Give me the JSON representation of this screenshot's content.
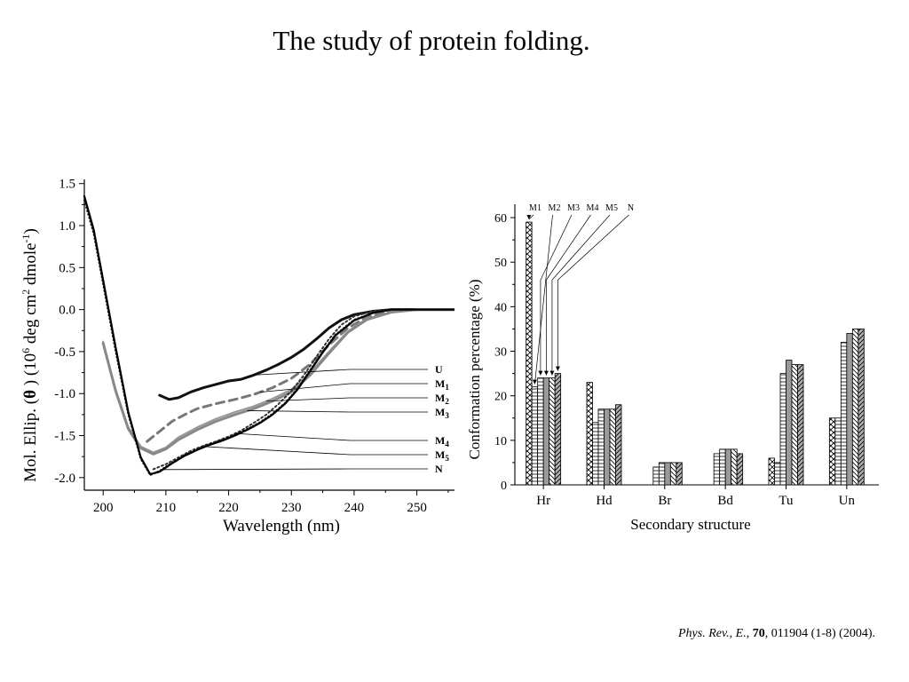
{
  "slide": {
    "title": "The study of protein folding."
  },
  "citation": {
    "journal": "Phys. Rev., E.",
    "sep1": ", ",
    "volume": "70",
    "rest": ", 011904 (1-8) (2004)."
  },
  "chart_data": [
    {
      "type": "line",
      "xlabel": "Wavelength (nm)",
      "ylabel_parts": {
        "a": "Mol. Ellip.  (",
        "theta": "θ",
        "b": " ) (10",
        "sup1": "6",
        "c": " deg cm",
        "sup2": "2",
        "d": " dmole",
        "sup3": "-1",
        "e": ")"
      },
      "xlim": [
        197,
        256
      ],
      "ylim": [
        -2.15,
        1.55
      ],
      "xticks": [
        200,
        210,
        220,
        230,
        240,
        250
      ],
      "yticks": [
        1.5,
        1.0,
        0.5,
        0.0,
        -0.5,
        -1.0,
        -1.5,
        -2.0
      ],
      "ytick_labels": [
        "1.5",
        "1.0",
        "0.5",
        "0.0",
        "-0.5",
        "-1.0",
        "-1.5",
        "-2.0"
      ],
      "series": [
        {
          "name": "U",
          "color": "#111111",
          "dash": "",
          "width": 3,
          "x": [
            209,
            210.5,
            212,
            214,
            216,
            218,
            220,
            222,
            224,
            226,
            228,
            230,
            232,
            234,
            236,
            238,
            240,
            243,
            246,
            250,
            256
          ],
          "y": [
            -1.02,
            -1.07,
            -1.05,
            -0.98,
            -0.93,
            -0.89,
            -0.85,
            -0.83,
            -0.78,
            -0.72,
            -0.65,
            -0.57,
            -0.47,
            -0.35,
            -0.22,
            -0.12,
            -0.06,
            -0.02,
            0.0,
            0.0,
            0.0
          ]
        },
        {
          "name": "M1",
          "color": "#777777",
          "dash": "9,6",
          "width": 3,
          "x": [
            207,
            209,
            211,
            213,
            215,
            218,
            221,
            224,
            227,
            230,
            233,
            236,
            239,
            242,
            246,
            250,
            256
          ],
          "y": [
            -1.57,
            -1.45,
            -1.33,
            -1.25,
            -1.18,
            -1.12,
            -1.07,
            -1.01,
            -0.93,
            -0.82,
            -0.65,
            -0.42,
            -0.22,
            -0.09,
            -0.02,
            0.0,
            0.0
          ]
        },
        {
          "name": "M2",
          "color": "#999999",
          "dash": "",
          "width": 2,
          "x": [
            200,
            202,
            204,
            206,
            208,
            210,
            212,
            215,
            218,
            221,
            224,
            227,
            230,
            233,
            236,
            239,
            242,
            246,
            250,
            256
          ],
          "y": [
            -0.38,
            -0.95,
            -1.4,
            -1.63,
            -1.7,
            -1.64,
            -1.52,
            -1.4,
            -1.3,
            -1.22,
            -1.15,
            -1.06,
            -0.95,
            -0.75,
            -0.5,
            -0.26,
            -0.11,
            -0.03,
            0.0,
            0.0
          ]
        },
        {
          "name": "M3",
          "color": "#888888",
          "dash": "",
          "width": 3,
          "x": [
            200,
            202,
            204,
            206,
            208,
            210,
            212,
            215,
            218,
            221,
            224,
            227,
            230,
            233,
            236,
            239,
            242,
            246,
            250,
            256
          ],
          "y": [
            -0.4,
            -0.97,
            -1.42,
            -1.65,
            -1.72,
            -1.66,
            -1.55,
            -1.43,
            -1.33,
            -1.25,
            -1.18,
            -1.09,
            -0.98,
            -0.78,
            -0.52,
            -0.27,
            -0.12,
            -0.03,
            0.0,
            0.0
          ]
        },
        {
          "name": "M4",
          "color": "#333333",
          "dash": "2,3",
          "width": 2,
          "x": [
            208,
            210,
            212,
            214,
            216,
            218,
            220,
            222,
            224,
            226,
            228,
            230,
            232,
            234,
            236,
            238,
            240,
            243,
            246,
            250,
            256
          ],
          "y": [
            -1.9,
            -1.84,
            -1.76,
            -1.68,
            -1.62,
            -1.57,
            -1.51,
            -1.44,
            -1.35,
            -1.25,
            -1.12,
            -0.97,
            -0.78,
            -0.56,
            -0.35,
            -0.18,
            -0.08,
            -0.02,
            0.0,
            0.0,
            0.0
          ]
        },
        {
          "name": "M5",
          "color": "#222222",
          "dash": "1,3",
          "width": 2,
          "x": [
            197,
            198.5,
            200,
            202,
            204,
            206,
            207.5,
            209,
            211,
            213,
            215,
            217,
            219,
            221,
            223,
            225,
            227,
            229,
            231,
            233,
            235,
            237,
            240,
            243,
            246,
            250,
            256
          ],
          "y": [
            1.3,
            0.9,
            0.3,
            -0.5,
            -1.25,
            -1.78,
            -1.97,
            -1.92,
            -1.82,
            -1.73,
            -1.66,
            -1.6,
            -1.55,
            -1.49,
            -1.42,
            -1.34,
            -1.24,
            -1.11,
            -0.94,
            -0.72,
            -0.5,
            -0.3,
            -0.12,
            -0.04,
            0.0,
            0.0,
            0.0
          ]
        },
        {
          "name": "N",
          "color": "#000000",
          "dash": "",
          "width": 2.2,
          "x": [
            197,
            198.5,
            200,
            202,
            204,
            206,
            207.5,
            209,
            211,
            213,
            215,
            217,
            219,
            221,
            223,
            225,
            227,
            229,
            231,
            233,
            235,
            237,
            240,
            243,
            246,
            250,
            256
          ],
          "y": [
            1.35,
            0.95,
            0.35,
            -0.45,
            -1.22,
            -1.76,
            -1.96,
            -1.93,
            -1.83,
            -1.74,
            -1.67,
            -1.61,
            -1.56,
            -1.5,
            -1.43,
            -1.35,
            -1.25,
            -1.12,
            -0.95,
            -0.73,
            -0.51,
            -0.31,
            -0.13,
            -0.04,
            0.0,
            0.0,
            0.0
          ]
        }
      ],
      "legend": [
        {
          "label": "U",
          "sub": ""
        },
        {
          "label": "M",
          "sub": "1"
        },
        {
          "label": "M",
          "sub": "2"
        },
        {
          "label": "M",
          "sub": "3"
        },
        {
          "label": "M",
          "sub": "4"
        },
        {
          "label": "M",
          "sub": "5"
        },
        {
          "label": "N",
          "sub": ""
        }
      ],
      "legend_placement": "right, with leader lines to curves",
      "legend_targets": [
        {
          "series": "U",
          "x": 224
        },
        {
          "series": "M1",
          "x": 225
        },
        {
          "series": "M2",
          "x": 226
        },
        {
          "series": "M3",
          "x": 223
        },
        {
          "series": "M4",
          "x": 221
        },
        {
          "series": "M5",
          "x": 216
        },
        {
          "series": "N",
          "x": 209.5
        }
      ],
      "grid": false
    },
    {
      "type": "bar",
      "xlabel": "Secondary structure",
      "ylabel": "Conformation percentage (%)",
      "ylim": [
        0,
        63
      ],
      "yticks": [
        0,
        10,
        20,
        30,
        40,
        50,
        60
      ],
      "categories": [
        "Hr",
        "Hd",
        "Br",
        "Bd",
        "Tu",
        "Un"
      ],
      "series": [
        {
          "name": "M1",
          "pattern": "crosshatch",
          "values": [
            59,
            23,
            0,
            0,
            6,
            15
          ]
        },
        {
          "name": "M2",
          "pattern": "horizontal",
          "values": [
            22,
            14,
            4,
            7,
            5,
            15
          ]
        },
        {
          "name": "M3",
          "pattern": "horizontal",
          "values": [
            24,
            17,
            5,
            8,
            25,
            32
          ]
        },
        {
          "name": "M4",
          "pattern": "gray",
          "values": [
            24,
            17,
            5,
            8,
            28,
            34
          ]
        },
        {
          "name": "M5",
          "pattern": "backslash",
          "values": [
            24,
            17,
            5,
            8,
            27,
            35
          ]
        },
        {
          "name": "N",
          "pattern": "slash",
          "values": [
            25,
            18,
            5,
            7,
            27,
            35
          ]
        }
      ],
      "legend_labels": [
        "M1",
        "M2",
        "M3",
        "M4",
        "M5",
        "N"
      ],
      "legend_placement": "top-left, with arrows to Hr bars",
      "grid": false
    }
  ]
}
